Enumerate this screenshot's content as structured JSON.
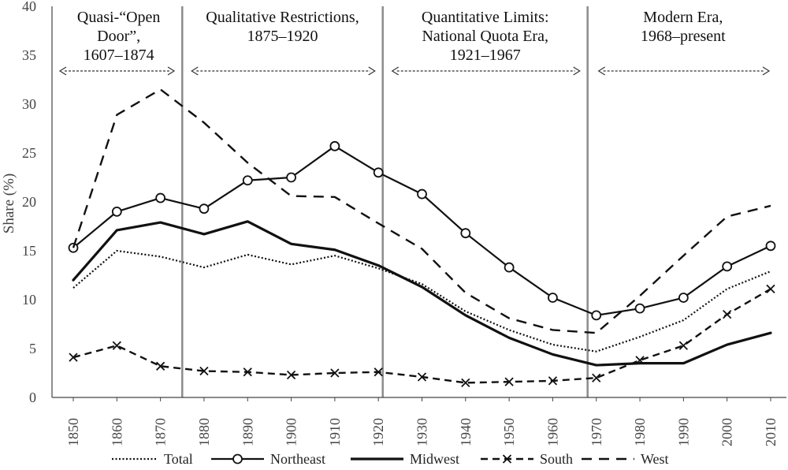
{
  "chart_data": {
    "type": "line",
    "title": "",
    "xlabel": "",
    "ylabel": "Share (%)",
    "ylim": [
      0,
      40
    ],
    "yticks": [
      0,
      5,
      10,
      15,
      20,
      25,
      30,
      35,
      40
    ],
    "grid": false,
    "legend_position": "bottom",
    "x": [
      1850,
      1860,
      1870,
      1880,
      1890,
      1900,
      1910,
      1920,
      1930,
      1940,
      1950,
      1960,
      1970,
      1980,
      1990,
      2000,
      2010
    ],
    "series": [
      {
        "name": "Total",
        "style": "dotted",
        "marker": "none",
        "values": [
          11.2,
          15.0,
          14.4,
          13.3,
          14.6,
          13.6,
          14.5,
          13.2,
          11.6,
          8.8,
          6.9,
          5.4,
          4.7,
          6.2,
          7.9,
          11.1,
          12.9
        ]
      },
      {
        "name": "Northeast",
        "style": "solid-thin",
        "marker": "circle",
        "values": [
          15.3,
          19.0,
          20.4,
          19.3,
          22.2,
          22.5,
          25.7,
          23.0,
          20.8,
          16.8,
          13.3,
          10.2,
          8.4,
          9.1,
          10.2,
          13.4,
          15.5
        ]
      },
      {
        "name": "Midwest",
        "style": "solid-thick",
        "marker": "none",
        "values": [
          12.0,
          17.1,
          17.9,
          16.7,
          18.0,
          15.7,
          15.1,
          13.5,
          11.3,
          8.4,
          6.1,
          4.4,
          3.3,
          3.5,
          3.5,
          5.4,
          6.6
        ]
      },
      {
        "name": "South",
        "style": "dashed",
        "marker": "x",
        "values": [
          4.1,
          5.3,
          3.2,
          2.7,
          2.6,
          2.3,
          2.5,
          2.6,
          2.1,
          1.5,
          1.6,
          1.7,
          2.0,
          3.8,
          5.3,
          8.5,
          11.1
        ]
      },
      {
        "name": "West",
        "style": "long-dashed",
        "marker": "none",
        "values": [
          15.3,
          28.9,
          31.5,
          28.1,
          24.0,
          20.6,
          20.5,
          17.8,
          15.2,
          10.7,
          8.1,
          6.9,
          6.6,
          10.4,
          14.5,
          18.5,
          19.6
        ]
      }
    ],
    "eras": [
      {
        "lines": [
          "Quasi-“Open",
          "Door”,",
          "1607–1874"
        ],
        "start_year": 1850,
        "end_year": 1875
      },
      {
        "lines": [
          "Qualitative Restrictions,",
          "1875–1920"
        ],
        "start_year": 1875,
        "end_year": 1920
      },
      {
        "lines": [
          "Quantitative Limits:",
          "National Quota Era,",
          "1921–1967"
        ],
        "start_year": 1921,
        "end_year": 1967
      },
      {
        "lines": [
          "Modern Era,",
          "1968–present"
        ],
        "start_year": 1968,
        "end_year": 2010
      }
    ],
    "era_dividers": [
      1875,
      1921,
      1968
    ]
  }
}
